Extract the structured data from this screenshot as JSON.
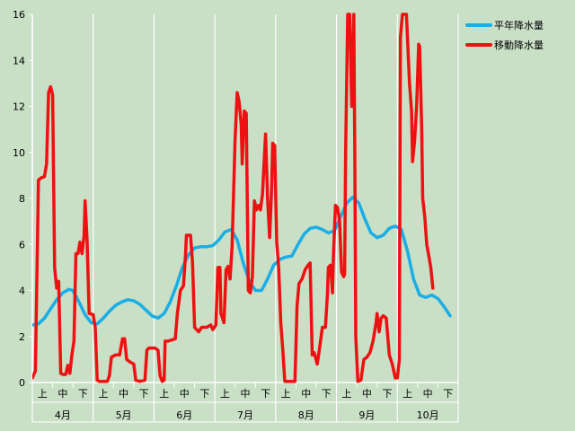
{
  "chart_data": {
    "type": "line",
    "title": "",
    "xlabel": "",
    "ylabel": "",
    "ylim": [
      0,
      16
    ],
    "ytick_step": 2,
    "grid": "vertical gridlines at month boundaries",
    "legend_placement": "top-right",
    "months": [
      "4月",
      "5月",
      "6月",
      "7月",
      "8月",
      "9月",
      "10月"
    ],
    "periods": [
      "上",
      "中",
      "下"
    ],
    "x_range": [
      0,
      21
    ],
    "x_unit": "旬 (10-day period) index from start of April",
    "series": [
      {
        "name": "平年降水量",
        "color": "#1aaee5",
        "points": [
          [
            0.0,
            2.5
          ],
          [
            0.3,
            2.55
          ],
          [
            0.6,
            2.8
          ],
          [
            0.9,
            3.2
          ],
          [
            1.2,
            3.6
          ],
          [
            1.5,
            3.9
          ],
          [
            1.8,
            4.05
          ],
          [
            2.0,
            4.0
          ],
          [
            2.3,
            3.5
          ],
          [
            2.6,
            2.95
          ],
          [
            2.9,
            2.6
          ],
          [
            3.2,
            2.55
          ],
          [
            3.5,
            2.8
          ],
          [
            3.8,
            3.1
          ],
          [
            4.1,
            3.35
          ],
          [
            4.4,
            3.5
          ],
          [
            4.7,
            3.6
          ],
          [
            5.0,
            3.55
          ],
          [
            5.3,
            3.4
          ],
          [
            5.6,
            3.15
          ],
          [
            5.9,
            2.9
          ],
          [
            6.2,
            2.8
          ],
          [
            6.5,
            3.0
          ],
          [
            6.8,
            3.5
          ],
          [
            7.1,
            4.2
          ],
          [
            7.4,
            5.0
          ],
          [
            7.7,
            5.55
          ],
          [
            8.0,
            5.85
          ],
          [
            8.3,
            5.9
          ],
          [
            8.6,
            5.9
          ],
          [
            8.9,
            5.95
          ],
          [
            9.2,
            6.2
          ],
          [
            9.5,
            6.55
          ],
          [
            9.8,
            6.65
          ],
          [
            10.1,
            6.2
          ],
          [
            10.4,
            5.2
          ],
          [
            10.7,
            4.4
          ],
          [
            11.0,
            4.0
          ],
          [
            11.3,
            4.0
          ],
          [
            11.6,
            4.5
          ],
          [
            11.9,
            5.1
          ],
          [
            12.2,
            5.35
          ],
          [
            12.5,
            5.45
          ],
          [
            12.8,
            5.5
          ],
          [
            13.1,
            6.0
          ],
          [
            13.4,
            6.45
          ],
          [
            13.7,
            6.7
          ],
          [
            14.0,
            6.75
          ],
          [
            14.3,
            6.65
          ],
          [
            14.6,
            6.5
          ],
          [
            14.9,
            6.6
          ],
          [
            15.2,
            7.2
          ],
          [
            15.5,
            7.8
          ],
          [
            15.8,
            8.05
          ],
          [
            16.1,
            7.8
          ],
          [
            16.4,
            7.1
          ],
          [
            16.7,
            6.5
          ],
          [
            17.0,
            6.3
          ],
          [
            17.3,
            6.4
          ],
          [
            17.6,
            6.7
          ],
          [
            17.9,
            6.8
          ],
          [
            18.2,
            6.65
          ],
          [
            18.5,
            5.7
          ],
          [
            18.8,
            4.5
          ],
          [
            19.1,
            3.8
          ],
          [
            19.4,
            3.7
          ],
          [
            19.7,
            3.8
          ],
          [
            20.0,
            3.65
          ],
          [
            20.3,
            3.3
          ],
          [
            20.6,
            2.9
          ]
        ]
      },
      {
        "name": "移動降水量",
        "color": "#ee1111",
        "points": [
          [
            0.0,
            0.2
          ],
          [
            0.15,
            0.5
          ],
          [
            0.3,
            8.8
          ],
          [
            0.45,
            8.9
          ],
          [
            0.6,
            8.95
          ],
          [
            0.7,
            9.5
          ],
          [
            0.8,
            12.6
          ],
          [
            0.9,
            12.85
          ],
          [
            1.0,
            12.5
          ],
          [
            1.1,
            5.0
          ],
          [
            1.2,
            4.1
          ],
          [
            1.3,
            4.4
          ],
          [
            1.4,
            0.4
          ],
          [
            1.5,
            0.35
          ],
          [
            1.65,
            0.35
          ],
          [
            1.75,
            0.75
          ],
          [
            1.85,
            0.4
          ],
          [
            1.95,
            1.2
          ],
          [
            2.05,
            1.8
          ],
          [
            2.15,
            5.6
          ],
          [
            2.25,
            5.6
          ],
          [
            2.35,
            6.1
          ],
          [
            2.45,
            5.6
          ],
          [
            2.55,
            6.4
          ],
          [
            2.6,
            7.9
          ],
          [
            2.7,
            6.2
          ],
          [
            2.8,
            3.0
          ],
          [
            3.0,
            2.95
          ],
          [
            3.1,
            2.4
          ],
          [
            3.2,
            0.1
          ],
          [
            3.3,
            0.05
          ],
          [
            3.5,
            0.05
          ],
          [
            3.7,
            0.05
          ],
          [
            3.8,
            0.3
          ],
          [
            3.9,
            1.1
          ],
          [
            4.1,
            1.2
          ],
          [
            4.3,
            1.2
          ],
          [
            4.45,
            1.9
          ],
          [
            4.55,
            1.9
          ],
          [
            4.65,
            1.0
          ],
          [
            4.8,
            0.9
          ],
          [
            5.0,
            0.8
          ],
          [
            5.1,
            0.1
          ],
          [
            5.3,
            0.05
          ],
          [
            5.55,
            0.1
          ],
          [
            5.65,
            1.4
          ],
          [
            5.75,
            1.5
          ],
          [
            6.05,
            1.5
          ],
          [
            6.2,
            1.4
          ],
          [
            6.3,
            0.3
          ],
          [
            6.4,
            0.05
          ],
          [
            6.5,
            0.1
          ],
          [
            6.55,
            1.8
          ],
          [
            6.7,
            1.8
          ],
          [
            7.05,
            1.9
          ],
          [
            7.15,
            3.0
          ],
          [
            7.3,
            4.0
          ],
          [
            7.45,
            4.2
          ],
          [
            7.55,
            5.5
          ],
          [
            7.6,
            6.4
          ],
          [
            7.8,
            6.4
          ],
          [
            7.9,
            5.2
          ],
          [
            8.0,
            2.4
          ],
          [
            8.2,
            2.2
          ],
          [
            8.35,
            2.4
          ],
          [
            8.6,
            2.4
          ],
          [
            8.8,
            2.5
          ],
          [
            8.9,
            2.3
          ],
          [
            9.05,
            2.5
          ],
          [
            9.15,
            5.0
          ],
          [
            9.25,
            5.0
          ],
          [
            9.3,
            3.0
          ],
          [
            9.45,
            2.6
          ],
          [
            9.55,
            4.9
          ],
          [
            9.65,
            5.05
          ],
          [
            9.75,
            4.5
          ],
          [
            9.85,
            5.9
          ],
          [
            10.0,
            10.6
          ],
          [
            10.1,
            12.6
          ],
          [
            10.2,
            12.2
          ],
          [
            10.3,
            11.2
          ],
          [
            10.35,
            9.5
          ],
          [
            10.45,
            11.8
          ],
          [
            10.55,
            11.7
          ],
          [
            10.65,
            4.0
          ],
          [
            10.75,
            3.9
          ],
          [
            10.85,
            4.6
          ],
          [
            10.95,
            7.9
          ],
          [
            11.05,
            7.5
          ],
          [
            11.15,
            7.7
          ],
          [
            11.25,
            7.5
          ],
          [
            11.35,
            8.2
          ],
          [
            11.45,
            9.9
          ],
          [
            11.5,
            10.8
          ],
          [
            11.6,
            8.0
          ],
          [
            11.7,
            6.3
          ],
          [
            11.8,
            8.4
          ],
          [
            11.85,
            10.4
          ],
          [
            11.95,
            10.3
          ],
          [
            12.05,
            6.1
          ],
          [
            12.15,
            5.0
          ],
          [
            12.25,
            2.6
          ],
          [
            12.35,
            1.4
          ],
          [
            12.45,
            0.05
          ],
          [
            12.6,
            0.05
          ],
          [
            12.8,
            0.05
          ],
          [
            12.95,
            0.05
          ],
          [
            13.05,
            3.3
          ],
          [
            13.15,
            4.3
          ],
          [
            13.3,
            4.5
          ],
          [
            13.45,
            4.9
          ],
          [
            13.6,
            5.1
          ],
          [
            13.7,
            5.2
          ],
          [
            13.8,
            1.2
          ],
          [
            13.9,
            1.3
          ],
          [
            14.05,
            0.8
          ],
          [
            14.15,
            1.4
          ],
          [
            14.3,
            2.4
          ],
          [
            14.45,
            2.4
          ],
          [
            14.55,
            3.8
          ],
          [
            14.6,
            5.0
          ],
          [
            14.7,
            5.1
          ],
          [
            14.8,
            3.9
          ],
          [
            14.85,
            5.6
          ],
          [
            14.95,
            7.7
          ],
          [
            15.05,
            7.6
          ],
          [
            15.15,
            7.0
          ],
          [
            15.25,
            4.8
          ],
          [
            15.35,
            4.6
          ],
          [
            15.4,
            4.7
          ],
          [
            15.45,
            10.0
          ],
          [
            15.55,
            16.0
          ],
          [
            15.65,
            16.0
          ],
          [
            15.75,
            12.0
          ],
          [
            15.85,
            16.0
          ],
          [
            15.9,
            10.0
          ],
          [
            15.95,
            2.0
          ],
          [
            16.05,
            0.05
          ],
          [
            16.2,
            0.1
          ],
          [
            16.35,
            1.0
          ],
          [
            16.5,
            1.1
          ],
          [
            16.65,
            1.3
          ],
          [
            16.8,
            1.8
          ],
          [
            16.95,
            2.6
          ],
          [
            17.0,
            3.0
          ],
          [
            17.1,
            2.2
          ],
          [
            17.2,
            2.8
          ],
          [
            17.3,
            2.9
          ],
          [
            17.45,
            2.8
          ],
          [
            17.6,
            1.2
          ],
          [
            17.75,
            0.8
          ],
          [
            17.9,
            0.2
          ],
          [
            18.0,
            0.2
          ],
          [
            18.1,
            1.0
          ],
          [
            18.15,
            15.0
          ],
          [
            18.25,
            16.0
          ],
          [
            18.35,
            16.0
          ],
          [
            18.45,
            16.0
          ],
          [
            18.6,
            13.0
          ],
          [
            18.7,
            11.8
          ],
          [
            18.75,
            9.6
          ],
          [
            18.85,
            10.5
          ],
          [
            18.95,
            12.0
          ],
          [
            19.05,
            14.7
          ],
          [
            19.1,
            14.6
          ],
          [
            19.2,
            11.0
          ],
          [
            19.25,
            8.0
          ],
          [
            19.35,
            7.2
          ],
          [
            19.45,
            6.0
          ],
          [
            19.55,
            5.5
          ],
          [
            19.65,
            5.0
          ],
          [
            19.75,
            4.1
          ]
        ]
      }
    ]
  },
  "y_tick_labels": [
    "0",
    "2",
    "4",
    "6",
    "8",
    "10",
    "12",
    "14",
    "16"
  ]
}
